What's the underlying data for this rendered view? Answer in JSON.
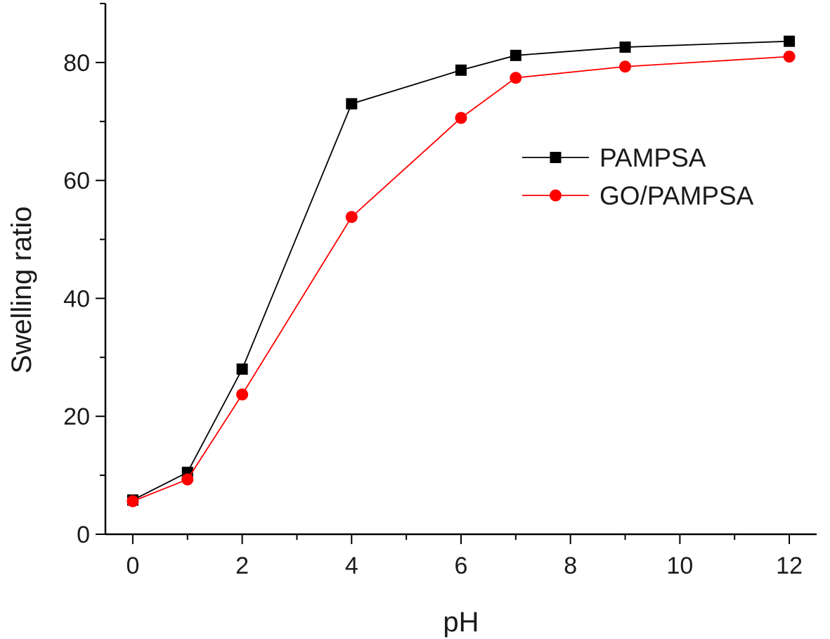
{
  "chart_data": {
    "type": "line",
    "xlabel": "pH",
    "ylabel": "Swelling ratio",
    "xlim": [
      -0.5,
      12.5
    ],
    "ylim": [
      0,
      90
    ],
    "x_ticks": [
      0,
      2,
      4,
      6,
      8,
      10,
      12
    ],
    "y_ticks": [
      0,
      20,
      40,
      60,
      80
    ],
    "grid": false,
    "legend_position": "center-right",
    "series": [
      {
        "name": "PAMPSA",
        "color": "#000000",
        "marker": "square",
        "x": [
          0,
          1,
          2,
          4,
          6,
          7,
          9,
          12
        ],
        "y": [
          5.8,
          10.5,
          28,
          73,
          78.7,
          81.2,
          82.6,
          83.6
        ]
      },
      {
        "name": "GO/PAMPSA",
        "color": "#ff0000",
        "marker": "circle",
        "x": [
          0,
          1,
          2,
          4,
          6,
          7,
          9,
          12
        ],
        "y": [
          5.6,
          9.3,
          23.7,
          53.8,
          70.6,
          77.4,
          79.3,
          81
        ]
      }
    ]
  }
}
